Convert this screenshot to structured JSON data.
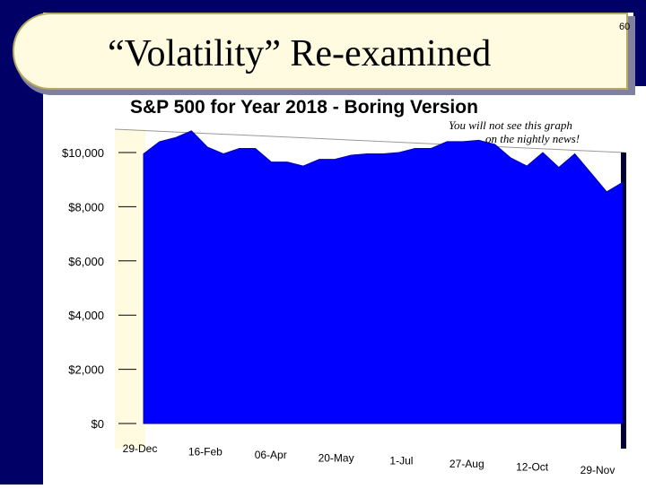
{
  "slide": {
    "title": "“Volatility” Re-examined",
    "slide_number": "60",
    "annotation_line1": "You will not see this graph",
    "annotation_line2": "on the nightly news!"
  },
  "colors": {
    "fill": "#0000ff",
    "background_band": "#fffbe0",
    "frame": "#000066"
  },
  "chart_data": {
    "type": "area",
    "title": "S&P 500 for Year 2018 - Boring Version",
    "xlabel": "",
    "ylabel": "",
    "ylim": [
      0,
      10000
    ],
    "yticks": [
      "$0",
      "$2,000",
      "$4,000",
      "$6,000",
      "$8,000",
      "$10,000"
    ],
    "ytick_values": [
      0,
      2000,
      4000,
      6000,
      8000,
      10000
    ],
    "xticks": [
      "29-Dec",
      "16-Feb",
      "06-Apr",
      "20-May",
      "1-Jul",
      "27-Aug",
      "12-Oct",
      "29-Nov"
    ],
    "grid": false,
    "legend": "none",
    "x": [
      "29-Dec",
      "12-Jan",
      "26-Jan",
      "2-Feb",
      "9-Feb",
      "16-Feb",
      "2-Mar",
      "16-Mar",
      "23-Mar",
      "6-Apr",
      "20-Apr",
      "4-May",
      "20-May",
      "1-Jun",
      "15-Jun",
      "1-Jul",
      "15-Jul",
      "1-Aug",
      "15-Aug",
      "27-Aug",
      "10-Sep",
      "20-Sep",
      "1-Oct",
      "12-Oct",
      "26-Oct",
      "9-Nov",
      "20-Nov",
      "29-Nov",
      "14-Dec",
      "24-Dec",
      "31-Dec"
    ],
    "values": [
      10000,
      10350,
      10600,
      10750,
      10250,
      9900,
      10200,
      10100,
      9700,
      9600,
      9550,
      9700,
      9800,
      9850,
      10000,
      9900,
      10050,
      10100,
      10200,
      10350,
      10450,
      10400,
      10350,
      9750,
      9550,
      9950,
      9500,
      9900,
      9300,
      8500,
      8950
    ]
  }
}
